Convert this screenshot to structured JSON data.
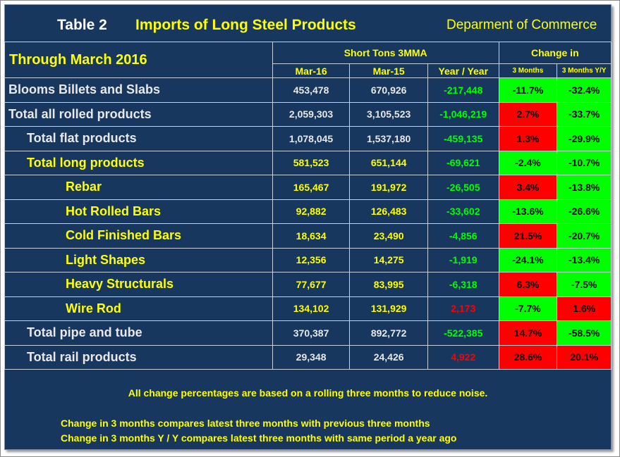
{
  "header": {
    "table_label": "Table 2",
    "title": "Imports of Long Steel Products",
    "source": "Deparment of Commerce"
  },
  "columns": {
    "period_label": "Through March 2016",
    "group_tons": "Short Tons 3MMA",
    "group_change": "Change in",
    "mar16": "Mar-16",
    "mar15": "Mar-15",
    "year_over_year": "Year / Year",
    "three_months": "3 Months",
    "three_months_yy": "3 Months Y/Y"
  },
  "colors": {
    "background": "#17375e",
    "positive_cell": "#00ff00",
    "negative_cell": "#ff0000",
    "yellow_text": "#ffff00",
    "white_text": "#e8e8e8"
  },
  "rows": [
    {
      "label": "Blooms Billets and Slabs",
      "mar16": "453,478",
      "mar15": "670,926",
      "yy": "-217,448",
      "yy_color": "green",
      "m3": "-11.7%",
      "m3_color": "green",
      "m3yy": "-32.4%",
      "m3yy_color": "green",
      "indent": 0,
      "label_color": "white"
    },
    {
      "label": "Total all rolled products",
      "mar16": "2,059,303",
      "mar15": "3,105,523",
      "yy": "-1,046,219",
      "yy_color": "green",
      "m3": "2.7%",
      "m3_color": "red",
      "m3yy": "-33.7%",
      "m3yy_color": "green",
      "indent": 0,
      "label_color": "white"
    },
    {
      "label": "Total flat products",
      "mar16": "1,078,045",
      "mar15": "1,537,180",
      "yy": "-459,135",
      "yy_color": "green",
      "m3": "1.3%",
      "m3_color": "red",
      "m3yy": "-29.9%",
      "m3yy_color": "green",
      "indent": 1,
      "label_color": "white"
    },
    {
      "label": "Total long products",
      "mar16": "581,523",
      "mar15": "651,144",
      "yy": "-69,621",
      "yy_color": "green",
      "m3": "-2.4%",
      "m3_color": "green",
      "m3yy": "-10.7%",
      "m3yy_color": "green",
      "indent": 1,
      "label_color": "yellow"
    },
    {
      "label": "Rebar",
      "mar16": "165,467",
      "mar15": "191,972",
      "yy": "-26,505",
      "yy_color": "green",
      "m3": "3.4%",
      "m3_color": "red",
      "m3yy": "-13.8%",
      "m3yy_color": "green",
      "indent": 2,
      "label_color": "yellow"
    },
    {
      "label": "Hot Rolled Bars",
      "mar16": "92,882",
      "mar15": "126,483",
      "yy": "-33,602",
      "yy_color": "green",
      "m3": "-13.6%",
      "m3_color": "green",
      "m3yy": "-26.6%",
      "m3yy_color": "green",
      "indent": 2,
      "label_color": "yellow"
    },
    {
      "label": "Cold Finished Bars",
      "mar16": "18,634",
      "mar15": "23,490",
      "yy": "-4,856",
      "yy_color": "green",
      "m3": "21.5%",
      "m3_color": "red",
      "m3yy": "-20.7%",
      "m3yy_color": "green",
      "indent": 2,
      "label_color": "yellow"
    },
    {
      "label": "Light Shapes",
      "mar16": "12,356",
      "mar15": "14,275",
      "yy": "-1,919",
      "yy_color": "green",
      "m3": "-24.1%",
      "m3_color": "green",
      "m3yy": "-13.4%",
      "m3yy_color": "green",
      "indent": 2,
      "label_color": "yellow"
    },
    {
      "label": "Heavy Structurals",
      "mar16": "77,677",
      "mar15": "83,995",
      "yy": "-6,318",
      "yy_color": "green",
      "m3": "6.3%",
      "m3_color": "red",
      "m3yy": "-7.5%",
      "m3yy_color": "green",
      "indent": 2,
      "label_color": "yellow"
    },
    {
      "label": "Wire Rod",
      "mar16": "134,102",
      "mar15": "131,929",
      "yy": "2,173",
      "yy_color": "red",
      "m3": "-7.7%",
      "m3_color": "green",
      "m3yy": "1.6%",
      "m3yy_color": "red",
      "indent": 2,
      "label_color": "yellow"
    },
    {
      "label": "Total pipe and tube",
      "mar16": "370,387",
      "mar15": "892,772",
      "yy": "-522,385",
      "yy_color": "green",
      "m3": "14.7%",
      "m3_color": "red",
      "m3yy": "-58.5%",
      "m3yy_color": "green",
      "indent": 1,
      "label_color": "white"
    },
    {
      "label": "Total rail products",
      "mar16": "29,348",
      "mar15": "24,426",
      "yy": "4,922",
      "yy_color": "red",
      "m3": "28.6%",
      "m3_color": "red",
      "m3yy": "20.1%",
      "m3yy_color": "red",
      "indent": 1,
      "label_color": "white"
    }
  ],
  "notes": {
    "rolling": "All change percentages are based on a rolling three months to reduce noise.",
    "three_months": "Change in 3 months compares latest three months with previous three months",
    "three_months_yy": "Change in 3 months  Y / Y compares latest three months with same period a year ago"
  }
}
